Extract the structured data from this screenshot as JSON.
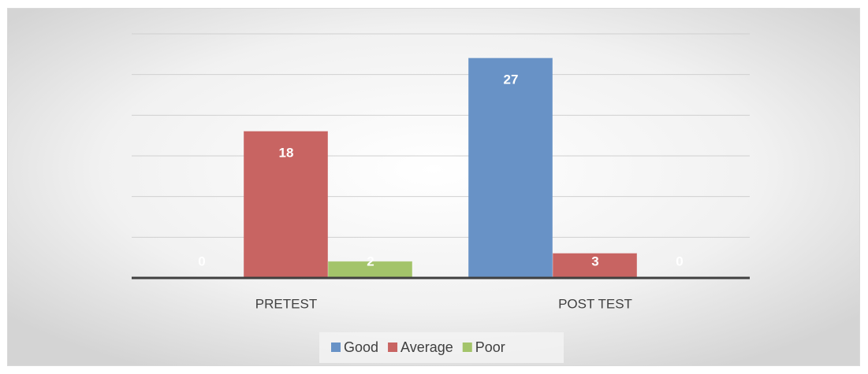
{
  "chart_data": {
    "type": "bar",
    "categories": [
      "PRETEST",
      "POST TEST"
    ],
    "series": [
      {
        "name": "Good",
        "color": "#6892c6",
        "values": [
          0,
          27
        ]
      },
      {
        "name": "Average",
        "color": "#c86462",
        "values": [
          18,
          3
        ]
      },
      {
        "name": "Poor",
        "color": "#a3c46a",
        "values": [
          2,
          0
        ]
      }
    ],
    "ylim": [
      0,
      30
    ],
    "yticks": [
      0,
      5,
      10,
      15,
      20,
      25,
      30
    ],
    "grid": true,
    "legend": "bottom"
  }
}
